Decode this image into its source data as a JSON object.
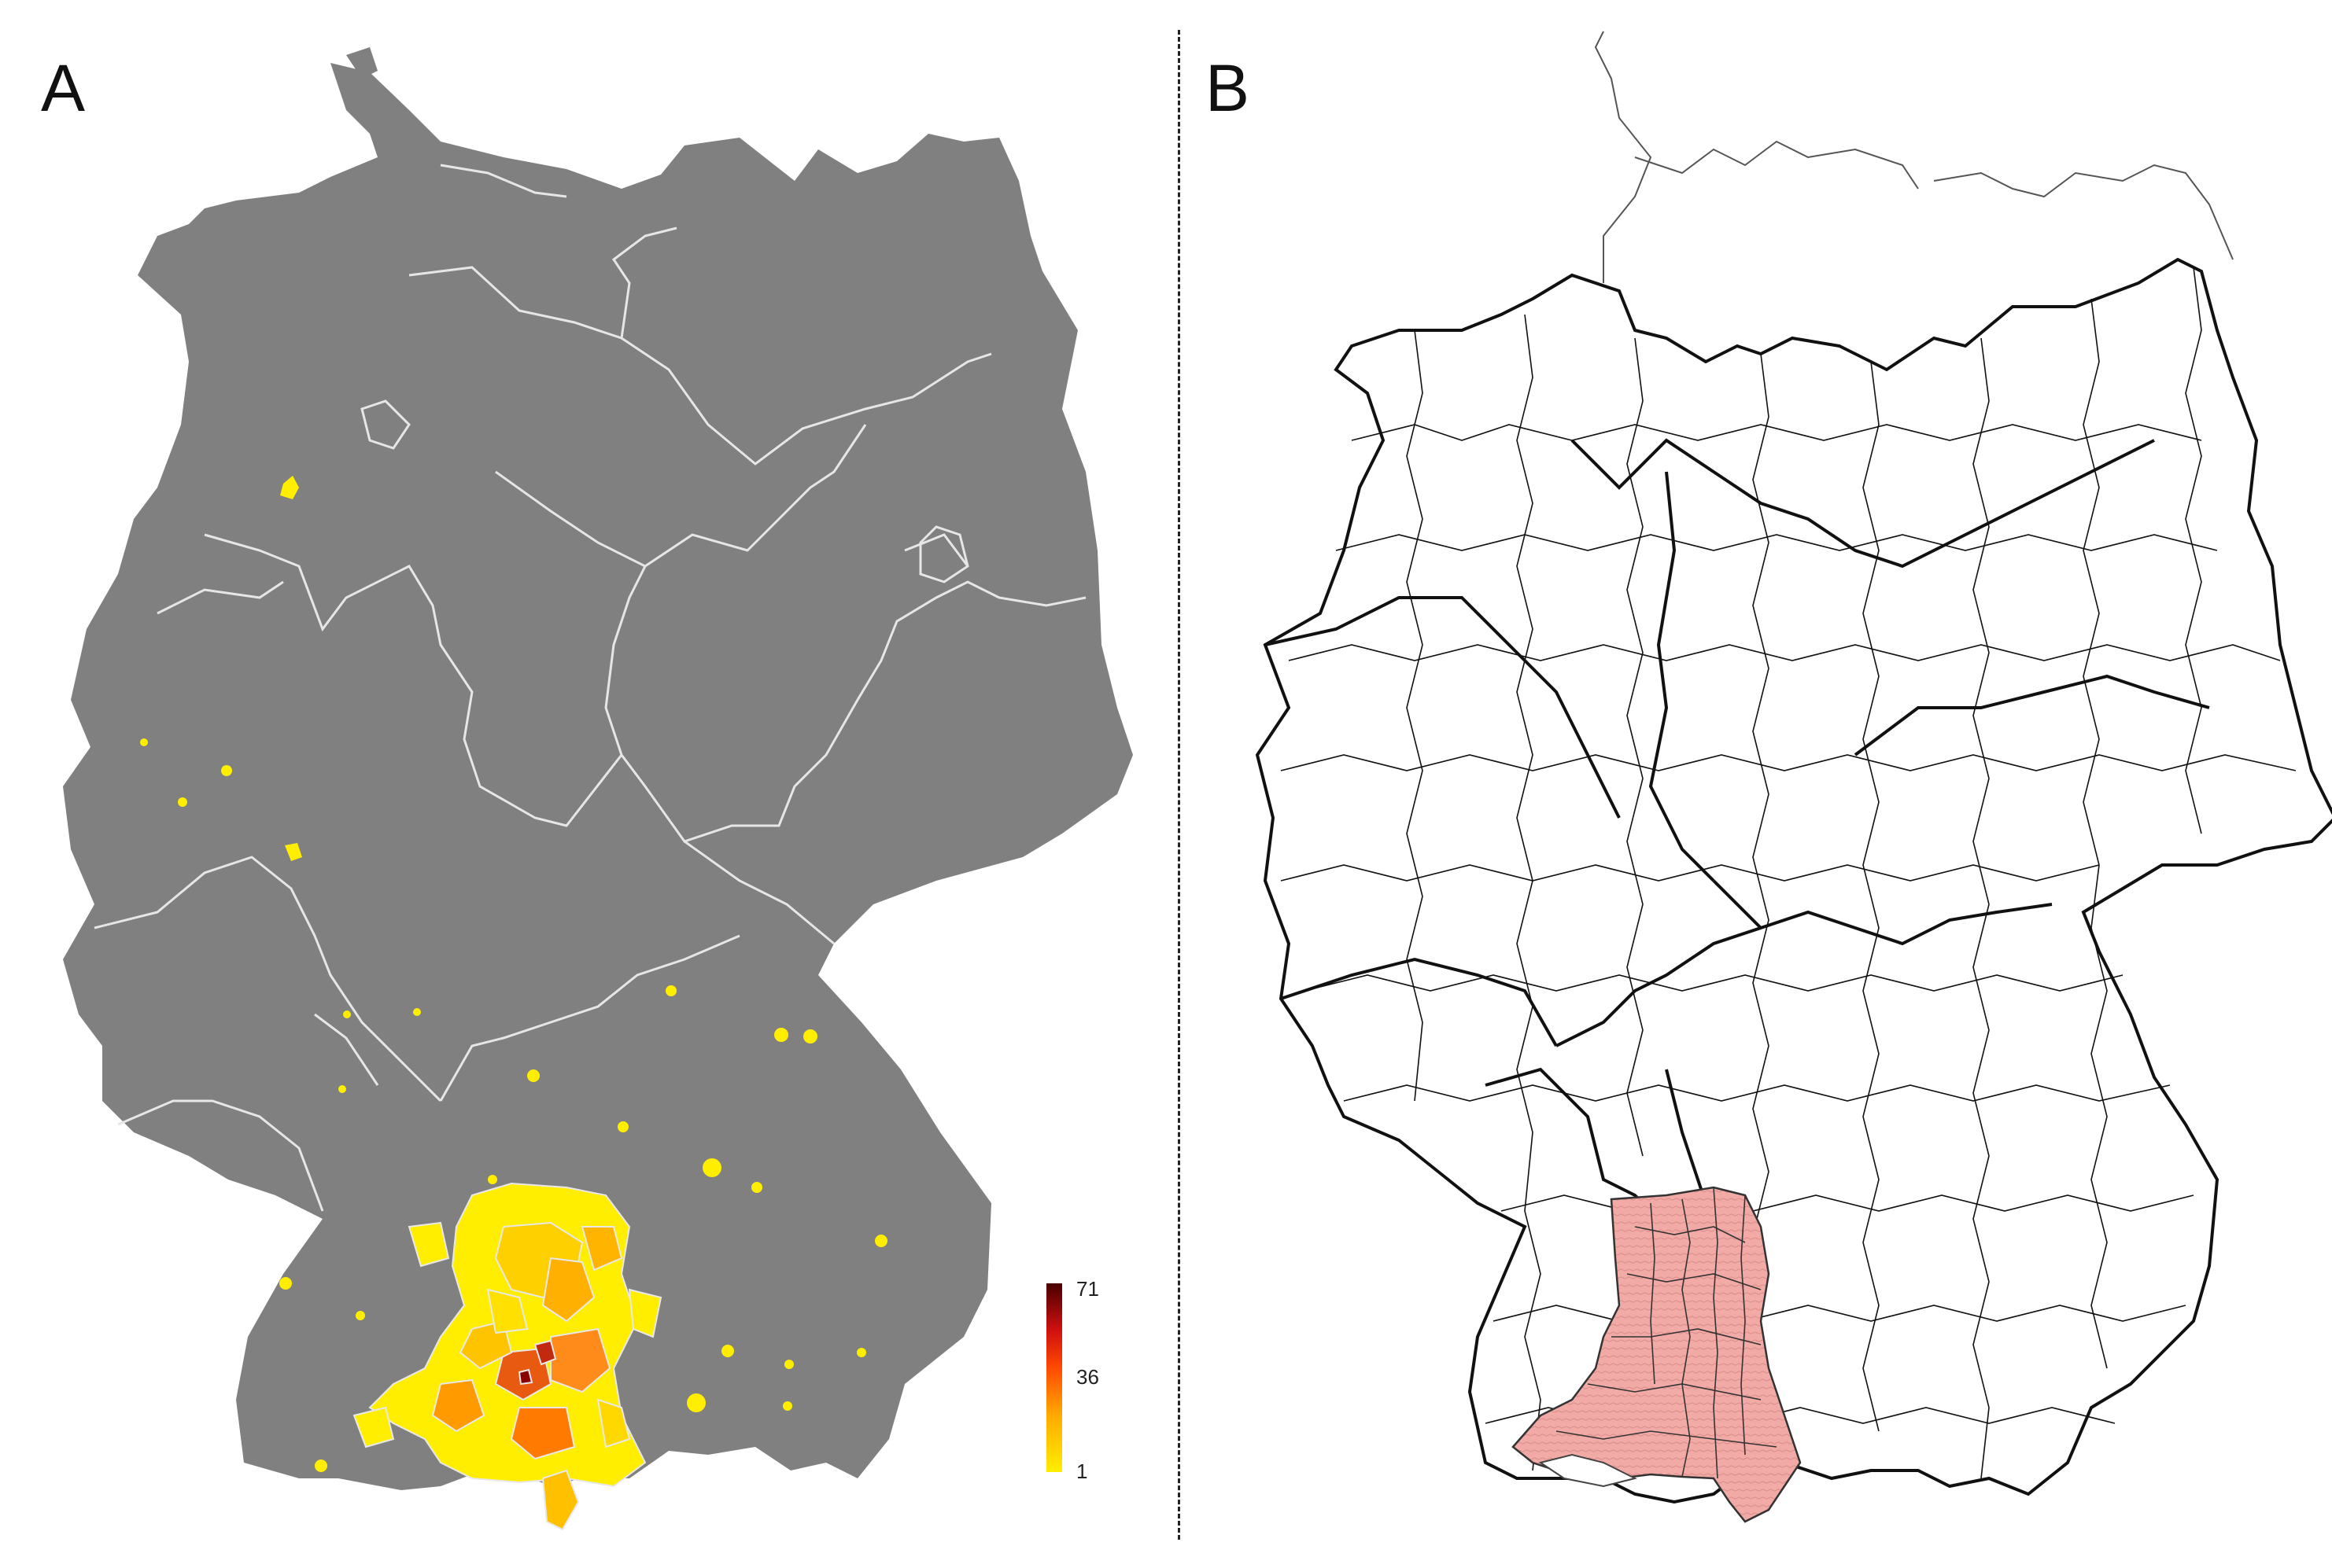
{
  "panels": {
    "a": {
      "label": "A"
    },
    "b": {
      "label": "B"
    }
  },
  "legend": {
    "max": "71",
    "mid": "36",
    "min": "1",
    "colors": [
      "#ffee00",
      "#ffaa00",
      "#ff5a00",
      "#e01010",
      "#8a0000",
      "#500000"
    ]
  },
  "colors": {
    "country_fill_a": "#808080",
    "border_lines_a": "#e6e6e6",
    "highlight_fill_b": "#f2aaa6",
    "outline_b": "#111111"
  }
}
